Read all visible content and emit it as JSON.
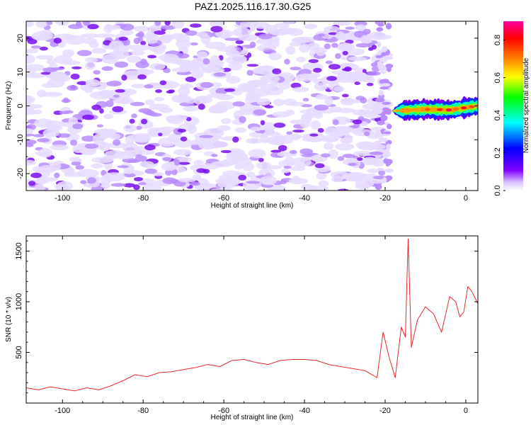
{
  "title": "PAZ1.2025.116.17.30.G25",
  "chart_data": [
    {
      "type": "heatmap",
      "xlabel": "Height of straight line (km)",
      "ylabel": "Frequency (Hz)",
      "xlim": [
        -109,
        3
      ],
      "ylim": [
        -25,
        25
      ],
      "xticks": [
        -100,
        -80,
        -60,
        -40,
        -20,
        0
      ],
      "yticks": [
        -20,
        -10,
        0,
        10,
        20
      ],
      "colorbar": {
        "label": "Normalized spectral amplitude",
        "range": [
          0,
          0.9
        ],
        "ticks": [
          0.0,
          0.2,
          0.4,
          0.6,
          0.8
        ],
        "tick_labels": [
          "0.0",
          "0.2",
          "0.4",
          "0.6",
          "0.8"
        ],
        "colors": [
          "#ffffff",
          "#d8bfff",
          "#8000ff",
          "#0000ff",
          "#00ffff",
          "#00ff00",
          "#ffff00",
          "#ff8000",
          "#ff0000",
          "#ff00a0"
        ]
      },
      "noise_region": {
        "x": [
          -109,
          -20
        ],
        "frequency_range": [
          -25,
          25
        ],
        "typical_amplitude": [
          0.02,
          0.12
        ]
      },
      "signal_band": {
        "x": [
          -18,
          3
        ],
        "center_frequency": [
          [
            -18,
            -1.5
          ],
          [
            -10,
            -1
          ],
          [
            -4,
            -1.2
          ],
          [
            0,
            -0.5
          ],
          [
            3,
            0
          ]
        ],
        "bandwidth_hz": 2.5,
        "peak_amplitude": 0.85
      }
    },
    {
      "type": "line",
      "xlabel": "Height of straight line (km)",
      "ylabel": "SNR (10 * v/v)",
      "xlim": [
        -109,
        3
      ],
      "ylim": [
        0,
        1650
      ],
      "xticks": [
        -100,
        -80,
        -60,
        -40,
        -20,
        0
      ],
      "yticks": [
        500,
        1000,
        1500
      ],
      "line_color": "#e8272b",
      "series": [
        {
          "x": [
            -109,
            -106,
            -103,
            -100,
            -97,
            -94,
            -91,
            -88,
            -85,
            -82,
            -79,
            -76,
            -73,
            -70,
            -67,
            -64,
            -61,
            -58,
            -55,
            -52,
            -49,
            -46,
            -43,
            -40,
            -37,
            -34,
            -31,
            -28,
            -25,
            -22,
            -20.5,
            -19,
            -17.5,
            -16,
            -15,
            -14.3,
            -13.5,
            -12,
            -10,
            -8,
            -6,
            -4,
            -2.5,
            -1.5,
            -0.5,
            0.5,
            1.5,
            3
          ],
          "y": [
            150,
            130,
            160,
            140,
            120,
            150,
            130,
            170,
            220,
            280,
            260,
            300,
            310,
            330,
            350,
            380,
            360,
            420,
            430,
            400,
            380,
            420,
            430,
            430,
            420,
            380,
            360,
            340,
            320,
            250,
            700,
            450,
            250,
            750,
            650,
            1620,
            550,
            820,
            950,
            880,
            700,
            1050,
            1000,
            850,
            900,
            1150,
            1100,
            980
          ]
        }
      ]
    }
  ]
}
